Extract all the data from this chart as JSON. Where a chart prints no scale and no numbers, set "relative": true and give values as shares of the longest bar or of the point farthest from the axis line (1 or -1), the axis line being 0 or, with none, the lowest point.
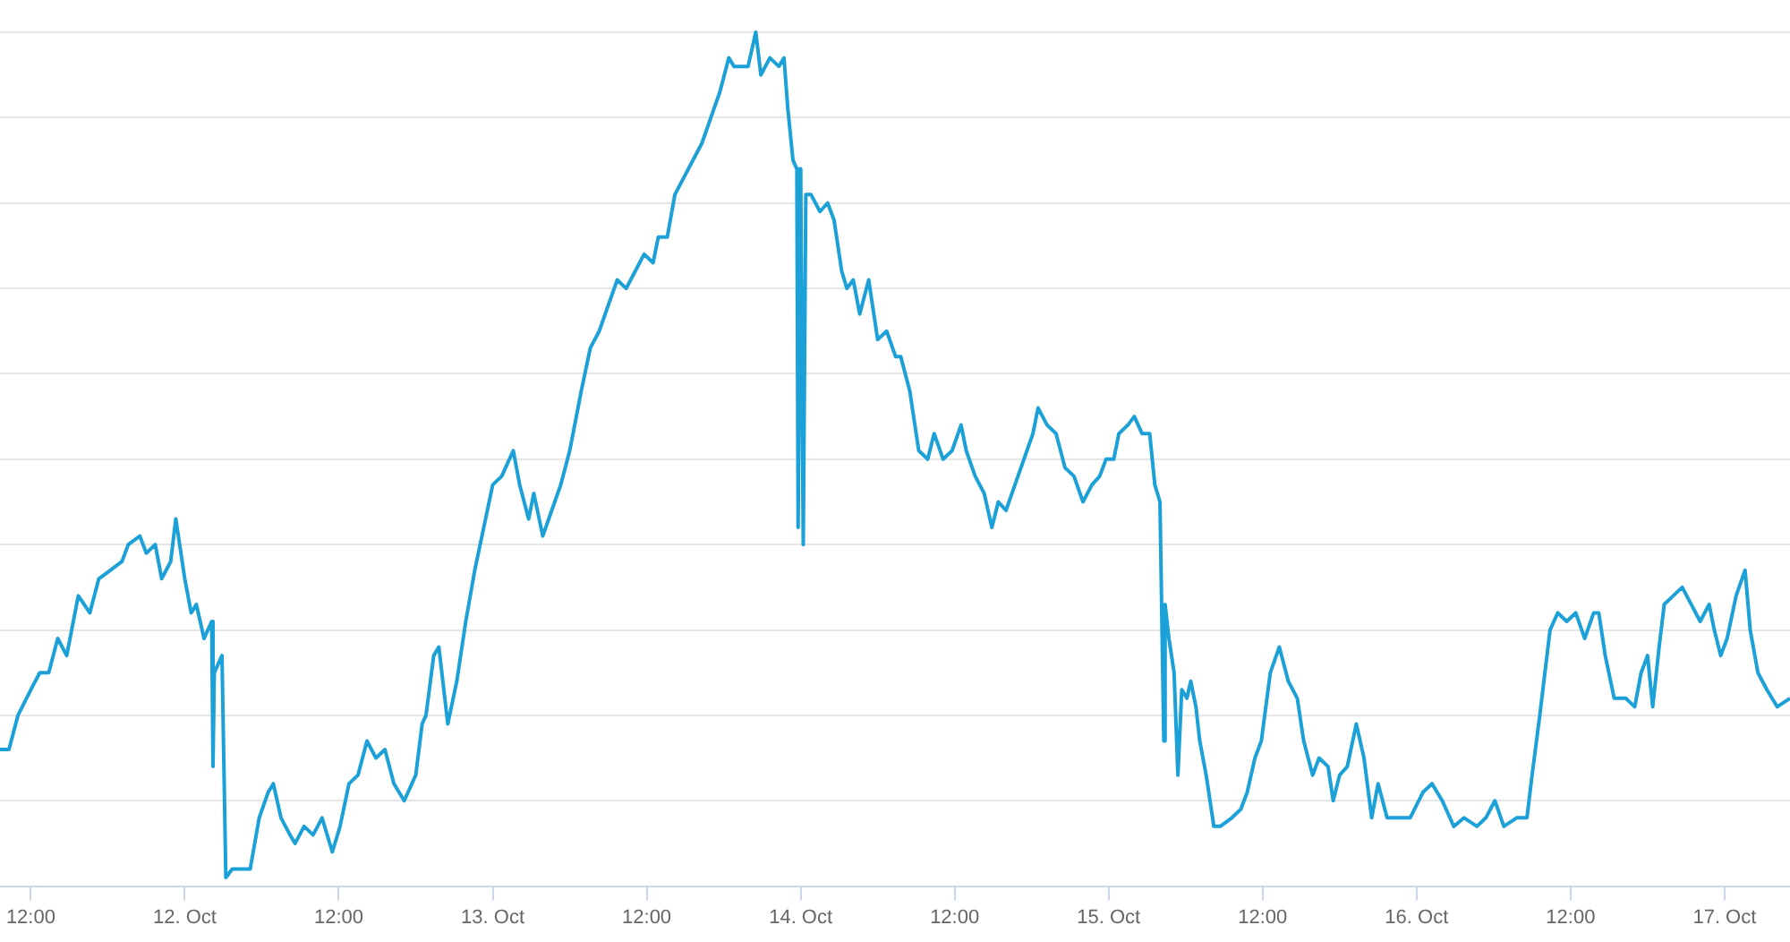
{
  "chart_data": {
    "type": "line",
    "relative": true,
    "grid": "y",
    "legend": false,
    "marker": "none",
    "line_style": "solid",
    "xlim": [
      "--10-11T09:36",
      "--10-17T05:06"
    ],
    "xticks": [
      {
        "value": "--10-11T12:00",
        "label": "12:00"
      },
      {
        "value": "--10-12",
        "label": "12. Oct"
      },
      {
        "value": "--10-12T12:00",
        "label": "12:00"
      },
      {
        "value": "--10-13",
        "label": "13. Oct"
      },
      {
        "value": "--10-13T12:00",
        "label": "12:00"
      },
      {
        "value": "--10-14",
        "label": "14. Oct"
      },
      {
        "value": "--10-14T12:00",
        "label": "12:00"
      },
      {
        "value": "--10-15",
        "label": "15. Oct"
      },
      {
        "value": "--10-15T12:00",
        "label": "12:00"
      },
      {
        "value": "--10-16",
        "label": "16. Oct"
      },
      {
        "value": "--10-16T12:00",
        "label": "12:00"
      },
      {
        "value": "--10-17",
        "label": "17. Oct"
      }
    ],
    "series": [
      {
        "color": "#1ba1d7",
        "x": [
          "--10-11T09:36",
          "--10-11T10:18",
          "--10-11T11:00",
          "--10-11T12:00",
          "--10-11T12:42",
          "--10-11T13:24",
          "--10-11T14:06",
          "--10-11T14:48",
          "--10-11T15:42",
          "--10-11T16:36",
          "--10-11T17:18",
          "--10-11T18:12",
          "--10-11T19:06",
          "--10-11T19:36",
          "--10-11T20:30",
          "--10-11T21:00",
          "--10-11T21:42",
          "--10-11T22:12",
          "--10-11T22:54",
          "--10-11T23:18",
          "--10-12T00:00",
          "--10-12T00:30",
          "--10-12T00:54",
          "--10-12T01:30",
          "--10-12T02:06",
          "--10-12T02:12",
          "--10-12T02:18",
          "--10-12T02:54",
          "--10-12T03:12",
          "--10-12T03:42",
          "--10-12T04:24",
          "--10-12T05:06",
          "--10-12T05:48",
          "--10-12T06:30",
          "--10-12T06:54",
          "--10-12T07:30",
          "--10-12T08:12",
          "--10-12T08:36",
          "--10-12T09:18",
          "--10-12T10:00",
          "--10-12T10:42",
          "--10-12T11:30",
          "--10-12T12:06",
          "--10-12T12:48",
          "--10-12T13:30",
          "--10-12T14:12",
          "--10-12T14:54",
          "--10-12T15:36",
          "--10-12T16:18",
          "--10-12T17:06",
          "--10-12T18:00",
          "--10-12T18:30",
          "--10-12T18:48",
          "--10-12T19:24",
          "--10-12T19:48",
          "--10-12T20:30",
          "--10-12T21:12",
          "--10-12T21:54",
          "--10-12T22:36",
          "--10-12T23:18",
          "--10-13T00:00",
          "--10-13T00:42",
          "--10-13T01:36",
          "--10-13T02:06",
          "--10-13T02:48",
          "--10-13T03:12",
          "--10-13T03:54",
          "--10-13T04:36",
          "--10-13T05:18",
          "--10-13T06:00",
          "--10-13T06:54",
          "--10-13T07:36",
          "--10-13T08:18",
          "--10-13T09:00",
          "--10-13T09:42",
          "--10-13T10:24",
          "--10-13T11:06",
          "--10-13T11:48",
          "--10-13T12:30",
          "--10-13T12:54",
          "--10-13T13:36",
          "--10-13T14:12",
          "--10-13T14:54",
          "--10-13T15:36",
          "--10-13T16:18",
          "--10-13T17:00",
          "--10-13T17:42",
          "--10-13T18:24",
          "--10-13T18:48",
          "--10-13T19:30",
          "--10-13T19:54",
          "--10-13T20:30",
          "--10-13T20:54",
          "--10-13T21:36",
          "--10-13T22:18",
          "--10-13T22:42",
          "--10-13T23:00",
          "--10-13T23:24",
          "--10-13T23:42",
          "--10-13T23:48",
          "--10-14T00:00",
          "--10-14T00:12",
          "--10-14T00:24",
          "--10-14T00:48",
          "--10-14T01:30",
          "--10-14T02:06",
          "--10-14T02:36",
          "--10-14T03:12",
          "--10-14T03:36",
          "--10-14T04:06",
          "--10-14T04:36",
          "--10-14T05:18",
          "--10-14T06:00",
          "--10-14T06:42",
          "--10-14T07:24",
          "--10-14T07:48",
          "--10-14T08:30",
          "--10-14T09:12",
          "--10-14T09:54",
          "--10-14T10:24",
          "--10-14T11:06",
          "--10-14T11:48",
          "--10-14T12:30",
          "--10-14T12:54",
          "--10-14T13:36",
          "--10-14T14:18",
          "--10-14T14:54",
          "--10-14T15:24",
          "--10-14T16:00",
          "--10-14T16:42",
          "--10-14T17:24",
          "--10-14T18:06",
          "--10-14T18:30",
          "--10-14T19:12",
          "--10-14T19:54",
          "--10-14T20:36",
          "--10-14T21:18",
          "--10-14T22:00",
          "--10-14T22:42",
          "--10-14T23:18",
          "--10-14T23:48",
          "--10-15T00:24",
          "--10-15T00:48",
          "--10-15T01:30",
          "--10-15T02:00",
          "--10-15T02:36",
          "--10-15T03:12",
          "--10-15T03:36",
          "--10-15T04:00",
          "--10-15T04:18",
          "--10-15T04:24",
          "--10-15T04:42",
          "--10-15T05:06",
          "--10-15T05:24",
          "--10-15T05:42",
          "--10-15T06:06",
          "--10-15T06:24",
          "--10-15T06:48",
          "--10-15T07:06",
          "--10-15T07:36",
          "--10-15T08:12",
          "--10-15T08:42",
          "--10-15T09:36",
          "--10-15T10:18",
          "--10-15T10:48",
          "--10-15T11:24",
          "--10-15T11:54",
          "--10-15T12:36",
          "--10-15T13:18",
          "--10-15T14:00",
          "--10-15T14:42",
          "--10-15T15:12",
          "--10-15T15:54",
          "--10-15T16:24",
          "--10-15T17:06",
          "--10-15T17:30",
          "--10-15T18:00",
          "--10-15T18:36",
          "--10-15T19:18",
          "--10-15T19:54",
          "--10-15T20:30",
          "--10-15T21:00",
          "--10-15T21:42",
          "--10-15T22:24",
          "--10-15T23:30",
          "--10-16T00:30",
          "--10-16T01:12",
          "--10-16T02:00",
          "--10-16T02:54",
          "--10-16T03:42",
          "--10-16T04:42",
          "--10-16T05:24",
          "--10-16T06:06",
          "--10-16T06:48",
          "--10-16T07:48",
          "--10-16T08:36",
          "--10-16T09:00",
          "--10-16T09:36",
          "--10-16T10:00",
          "--10-16T10:24",
          "--10-16T11:00",
          "--10-16T11:42",
          "--10-16T12:24",
          "--10-16T13:06",
          "--10-16T13:48",
          "--10-16T14:12",
          "--10-16T14:42",
          "--10-16T15:24",
          "--10-16T16:18",
          "--10-16T17:00",
          "--10-16T17:30",
          "--10-16T18:00",
          "--10-16T18:24",
          "--10-16T18:54",
          "--10-16T19:18",
          "--10-16T20:00",
          "--10-16T20:42",
          "--10-16T21:24",
          "--10-16T22:06",
          "--10-16T22:48",
          "--10-16T23:12",
          "--10-16T23:42",
          "--10-17T00:12",
          "--10-17T00:54",
          "--10-17T01:36",
          "--10-17T02:00",
          "--10-17T02:36",
          "--10-17T03:18",
          "--10-17T04:06",
          "--10-17T05:06"
        ],
        "values": [
          0.16,
          0.16,
          0.2,
          0.23,
          0.25,
          0.25,
          0.29,
          0.27,
          0.34,
          0.32,
          0.36,
          0.37,
          0.38,
          0.4,
          0.41,
          0.39,
          0.4,
          0.36,
          0.38,
          0.43,
          0.36,
          0.32,
          0.33,
          0.29,
          0.31,
          0.14,
          0.25,
          0.27,
          0.01,
          0.02,
          0.02,
          0.02,
          0.08,
          0.11,
          0.12,
          0.08,
          0.06,
          0.05,
          0.07,
          0.06,
          0.08,
          0.04,
          0.07,
          0.12,
          0.13,
          0.17,
          0.15,
          0.16,
          0.12,
          0.1,
          0.13,
          0.19,
          0.2,
          0.27,
          0.28,
          0.19,
          0.24,
          0.31,
          0.37,
          0.42,
          0.47,
          0.48,
          0.51,
          0.47,
          0.43,
          0.46,
          0.41,
          0.44,
          0.47,
          0.51,
          0.58,
          0.63,
          0.65,
          0.68,
          0.71,
          0.7,
          0.72,
          0.74,
          0.73,
          0.76,
          0.76,
          0.81,
          0.83,
          0.85,
          0.87,
          0.9,
          0.93,
          0.97,
          0.96,
          0.96,
          0.96,
          1,
          0.95,
          0.97,
          0.96,
          0.97,
          0.91,
          0.85,
          0.84,
          0.42,
          0.84,
          0.4,
          0.81,
          0.81,
          0.79,
          0.8,
          0.78,
          0.72,
          0.7,
          0.71,
          0.67,
          0.71,
          0.64,
          0.65,
          0.62,
          0.62,
          0.58,
          0.51,
          0.5,
          0.53,
          0.5,
          0.51,
          0.54,
          0.51,
          0.48,
          0.46,
          0.42,
          0.45,
          0.44,
          0.47,
          0.5,
          0.53,
          0.56,
          0.54,
          0.53,
          0.49,
          0.48,
          0.45,
          0.47,
          0.48,
          0.5,
          0.5,
          0.53,
          0.54,
          0.55,
          0.53,
          0.53,
          0.47,
          0.45,
          0.17,
          0.33,
          0.29,
          0.25,
          0.13,
          0.23,
          0.22,
          0.24,
          0.21,
          0.17,
          0.13,
          0.07,
          0.07,
          0.08,
          0.09,
          0.11,
          0.15,
          0.17,
          0.25,
          0.28,
          0.24,
          0.22,
          0.17,
          0.13,
          0.15,
          0.14,
          0.1,
          0.13,
          0.14,
          0.19,
          0.15,
          0.08,
          0.12,
          0.08,
          0.08,
          0.08,
          0.11,
          0.12,
          0.1,
          0.07,
          0.08,
          0.07,
          0.08,
          0.1,
          0.07,
          0.08,
          0.08,
          0.13,
          0.2,
          0.25,
          0.3,
          0.32,
          0.31,
          0.32,
          0.29,
          0.32,
          0.32,
          0.27,
          0.22,
          0.22,
          0.21,
          0.25,
          0.27,
          0.21,
          0.28,
          0.33,
          0.34,
          0.35,
          0.33,
          0.31,
          0.33,
          0.3,
          0.27,
          0.29,
          0.34,
          0.37,
          0.3,
          0.25,
          0.23,
          0.21,
          0.22
        ]
      }
    ]
  }
}
